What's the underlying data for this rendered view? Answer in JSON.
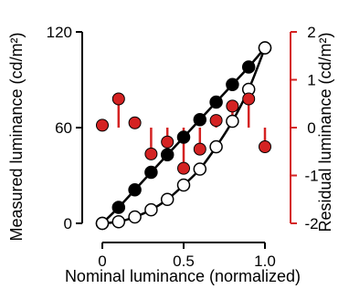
{
  "chart_data": {
    "type": "scatter",
    "xlabel": "Nominal luminance (normalized)",
    "ylabel_left": "Measured luminance (cd/m²)",
    "ylabel_right": "Residual luminance (cd/m²)",
    "xlim": [
      0,
      1
    ],
    "ylim_left": [
      0,
      120
    ],
    "ylim_right": [
      -2,
      2
    ],
    "x_ticks": [
      0,
      0.5,
      1
    ],
    "x_tick_labels": [
      "0",
      "0.5",
      "1.0"
    ],
    "y_left_ticks": [
      0,
      60,
      120
    ],
    "y_left_tick_labels": [
      "0",
      "60",
      "120"
    ],
    "y_right_ticks": [
      -2,
      -1,
      0,
      1,
      2
    ],
    "y_right_tick_labels": [
      "-2",
      "-1",
      "0",
      "1",
      "2"
    ],
    "grid": false,
    "legend": "none",
    "series": [
      {
        "axis": "left",
        "marker": "filled-circle",
        "color": "#000000",
        "x": [
          0,
          0.1,
          0.2,
          0.3,
          0.4,
          0.5,
          0.6,
          0.7,
          0.8,
          0.9,
          1.0
        ],
        "y": [
          0,
          10,
          21,
          32,
          43,
          54,
          65,
          76,
          87,
          98,
          110
        ]
      },
      {
        "axis": "left",
        "marker": "open-circle",
        "color": "#000000",
        "x": [
          0,
          0.1,
          0.2,
          0.3,
          0.4,
          0.5,
          0.6,
          0.7,
          0.8,
          0.9,
          1.0
        ],
        "y": [
          0,
          1,
          4,
          8.5,
          15,
          24,
          34,
          48,
          64,
          84,
          110
        ]
      },
      {
        "axis": "right",
        "marker": "red-stem",
        "color": "#d42222",
        "x": [
          0,
          0.1,
          0.2,
          0.3,
          0.4,
          0.5,
          0.6,
          0.7,
          0.8,
          0.9,
          1.0
        ],
        "y": [
          0.05,
          0.6,
          0.1,
          -0.55,
          -0.3,
          -0.85,
          -0.45,
          0.15,
          0.45,
          0.6,
          -0.4
        ]
      }
    ]
  }
}
